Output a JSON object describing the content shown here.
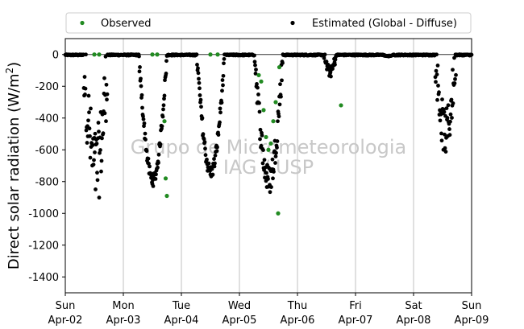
{
  "chart_data": {
    "type": "scatter",
    "ylabel_main": "Direct solar radiation (W/m",
    "ylabel_sup": "2",
    "ylabel_close": ")",
    "ylim": [
      -1500,
      100
    ],
    "yticks": [
      0,
      -200,
      -400,
      -600,
      -800,
      -1000,
      -1200,
      -1400
    ],
    "xlim": [
      "2017-04-02",
      "2017-04-09"
    ],
    "xticks": [
      {
        "day": "Sun",
        "date": "Apr-02"
      },
      {
        "day": "Mon",
        "date": "Apr-03"
      },
      {
        "day": "Tue",
        "date": "Apr-04"
      },
      {
        "day": "Wed",
        "date": "Apr-05"
      },
      {
        "day": "Thu",
        "date": "Apr-06"
      },
      {
        "day": "Fri",
        "date": "Apr-07"
      },
      {
        "day": "Sat",
        "date": "Apr-08"
      },
      {
        "day": "Sun",
        "date": "Apr-09"
      }
    ],
    "grid": "vertical",
    "legend_position": "top",
    "watermark": [
      "Grupo de Micrometeorologia",
      "IAG / USP"
    ],
    "series": [
      {
        "name": "Observed",
        "color": "#228b22",
        "points": [
          [
            "2017-04-02 12:00",
            0
          ],
          [
            "2017-04-02 14:00",
            0
          ],
          [
            "2017-04-03 12:00",
            0
          ],
          [
            "2017-04-03 14:00",
            0
          ],
          [
            "2017-04-03 17:00",
            -420
          ],
          [
            "2017-04-03 17:30",
            -780
          ],
          [
            "2017-04-03 18:00",
            -890
          ],
          [
            "2017-04-04 12:00",
            0
          ],
          [
            "2017-04-04 15:00",
            0
          ],
          [
            "2017-04-05 08:00",
            -130
          ],
          [
            "2017-04-05 09:00",
            -170
          ],
          [
            "2017-04-05 10:00",
            -350
          ],
          [
            "2017-04-05 11:00",
            -520
          ],
          [
            "2017-04-05 12:00",
            -600
          ],
          [
            "2017-04-05 13:00",
            -560
          ],
          [
            "2017-04-05 14:00",
            -420
          ],
          [
            "2017-04-05 15:00",
            -300
          ],
          [
            "2017-04-05 16:00",
            -1000
          ],
          [
            "2017-04-05 16:30",
            -80
          ],
          [
            "2017-04-06 18:00",
            -320
          ]
        ]
      },
      {
        "name": "Estimated (Global - Diffuse)",
        "color": "#000000",
        "days": [
          {
            "date": "2017-04-02",
            "start": 7.6,
            "end": 17.6,
            "peak": -720,
            "noise": 0.35
          },
          {
            "date": "2017-04-03",
            "start": 6.3,
            "end": 18.1,
            "peak": -790,
            "noise": 0.05
          },
          {
            "date": "2017-04-04",
            "start": 6.3,
            "end": 18.0,
            "peak": -740,
            "noise": 0.06
          },
          {
            "date": "2017-04-05",
            "start": 6.3,
            "end": 18.0,
            "peak": -790,
            "noise": 0.12
          },
          {
            "date": "2017-04-06",
            "start": 11.0,
            "end": 16.0,
            "peak": -110,
            "noise": 0.3
          },
          {
            "date": "2017-04-07",
            "start": 11.0,
            "end": 16.0,
            "peak": -10,
            "noise": 0.3
          },
          {
            "date": "2017-04-08",
            "start": 9.0,
            "end": 17.5,
            "peak": -490,
            "noise": 0.3
          }
        ]
      }
    ]
  }
}
